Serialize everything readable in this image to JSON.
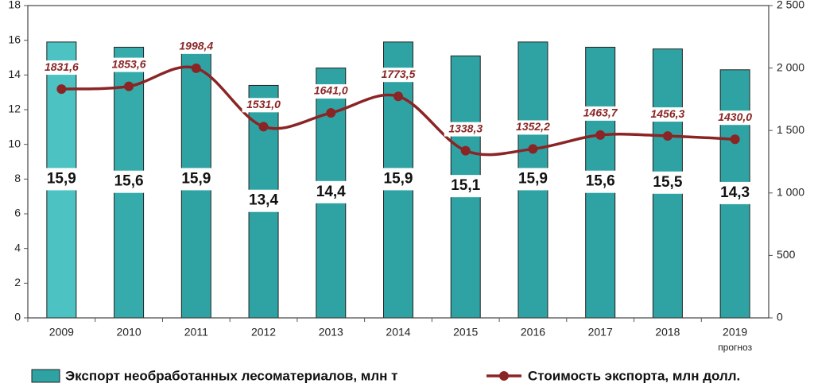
{
  "chart_data": {
    "type": "bar_line",
    "categories": [
      "2009",
      "2010",
      "2011",
      "2012",
      "2013",
      "2014",
      "2015",
      "2016",
      "2017",
      "2018",
      "2019"
    ],
    "category_note": {
      "index": 10,
      "text": "прогноз"
    },
    "ylim": [
      0,
      18
    ],
    "yticks": [
      0,
      2,
      4,
      6,
      8,
      10,
      12,
      14,
      16,
      18
    ],
    "y2lim": [
      0,
      2500
    ],
    "y2ticks": [
      0,
      500,
      {
        "value": 1000,
        "label": "1 000"
      },
      {
        "value": 1500,
        "label": "1 500"
      },
      {
        "value": 2000,
        "label": "2 000"
      },
      {
        "value": 2500,
        "label": "2 500"
      }
    ],
    "series": [
      {
        "name": "Экспорт необработанных лесоматериалов, млн т",
        "type": "bar",
        "colors": [
          "#4cc2c2",
          "#36abab",
          "#2fa3a3",
          "#2fa3a3",
          "#2fa3a3",
          "#2fa3a3",
          "#2fa3a3",
          "#2fa3a3",
          "#2fa3a3",
          "#2fa3a3",
          "#2fa3a3"
        ],
        "color": "#2fa3a3",
        "values": [
          15.9,
          15.6,
          15.9,
          13.4,
          14.4,
          15.9,
          15.1,
          15.9,
          15.6,
          15.5,
          14.3
        ],
        "value_labels": [
          "15,9",
          "15,6",
          "15,9",
          "13,4",
          "14,4",
          "15,9",
          "15,1",
          "15,9",
          "15,6",
          "15,5",
          "14,3"
        ]
      },
      {
        "name": "Стоимость экспорта, млн долл.",
        "type": "line",
        "axis": "y2",
        "color": "#8b2525",
        "values": [
          1831.6,
          1853.6,
          1998.4,
          1531.0,
          1641.0,
          1773.5,
          1338.3,
          1352.2,
          1463.7,
          1456.3,
          1430.0
        ],
        "value_labels": [
          "1831,6",
          "1853,6",
          "1998,4",
          "1531,0",
          "1641,0",
          "1773,5",
          "1338,3",
          "1352,2",
          "1463,7",
          "1456,3",
          "1430,0"
        ]
      }
    ]
  }
}
